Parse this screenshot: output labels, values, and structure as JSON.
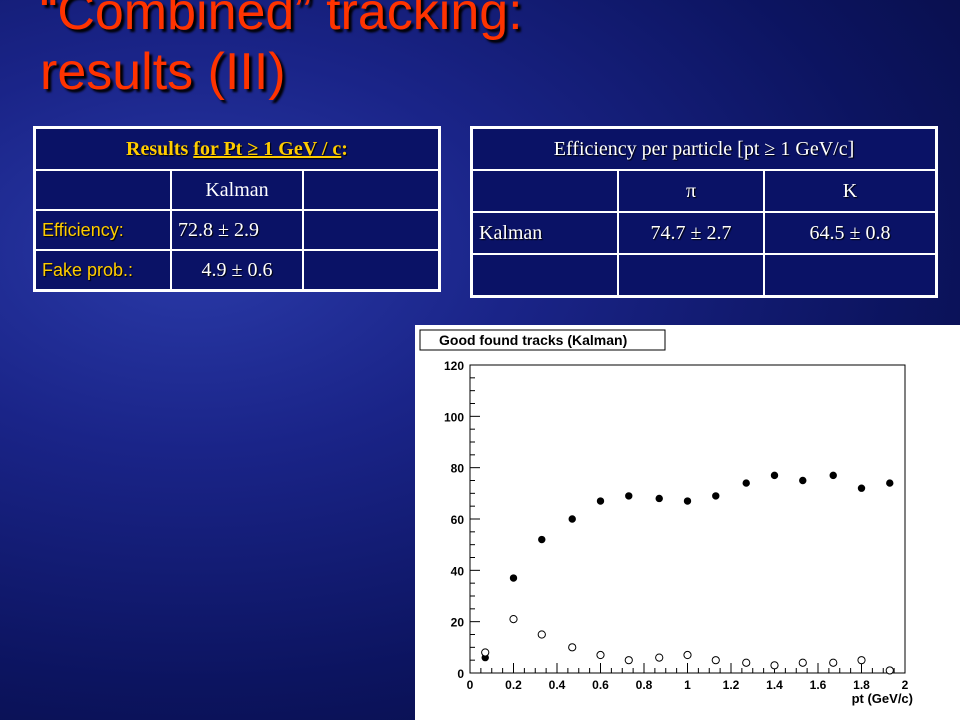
{
  "slide": {
    "title_line1": "“Combined” tracking:",
    "title_line2": "results (III)"
  },
  "table1": {
    "header_prefix": "Results ",
    "header_underlined": "for Pt ≥ 1 GeV / c",
    "header_suffix": ":",
    "col_header": "Kalman",
    "rows": [
      {
        "label": "Efficiency:",
        "value": "72.8 ± 2.9"
      },
      {
        "label": "Fake prob.:",
        "value": "4.9 ± 0.6"
      }
    ]
  },
  "table2": {
    "header": "Efficiency per particle [pt ≥ 1 GeV/c]",
    "cols": [
      "π",
      "K"
    ],
    "row_label": "Kalman",
    "values": [
      "74.7 ± 2.7",
      "64.5 ± 0.8"
    ]
  },
  "chart_data": {
    "type": "scatter",
    "title": "Good found tracks (Kalman)",
    "xlabel": "pt (GeV/c)",
    "ylabel": "",
    "xlim": [
      0,
      2
    ],
    "ylim": [
      0,
      120
    ],
    "x_ticks": [
      "0",
      "0.2",
      "0.4",
      "0.6",
      "0.8",
      "1",
      "1.2",
      "1.4",
      "1.6",
      "1.8",
      "2"
    ],
    "y_ticks": [
      "0",
      "20",
      "40",
      "60",
      "80",
      "100",
      "120"
    ],
    "series": [
      {
        "marker": "filled",
        "x": [
          0.07,
          0.2,
          0.33,
          0.47,
          0.6,
          0.73,
          0.87,
          1.0,
          1.13,
          1.27,
          1.4,
          1.53,
          1.67,
          1.8,
          1.93
        ],
        "y": [
          6,
          37,
          52,
          60,
          67,
          69,
          68,
          67,
          69,
          74,
          77,
          75,
          77,
          72,
          74
        ]
      },
      {
        "marker": "open",
        "x": [
          0.07,
          0.2,
          0.33,
          0.47,
          0.6,
          0.73,
          0.87,
          1.0,
          1.13,
          1.27,
          1.4,
          1.53,
          1.67,
          1.8,
          1.93
        ],
        "y": [
          8,
          21,
          15,
          10,
          7,
          5,
          6,
          7,
          5,
          4,
          3,
          4,
          4,
          5,
          1
        ]
      }
    ],
    "grid": false,
    "legend": "none"
  }
}
